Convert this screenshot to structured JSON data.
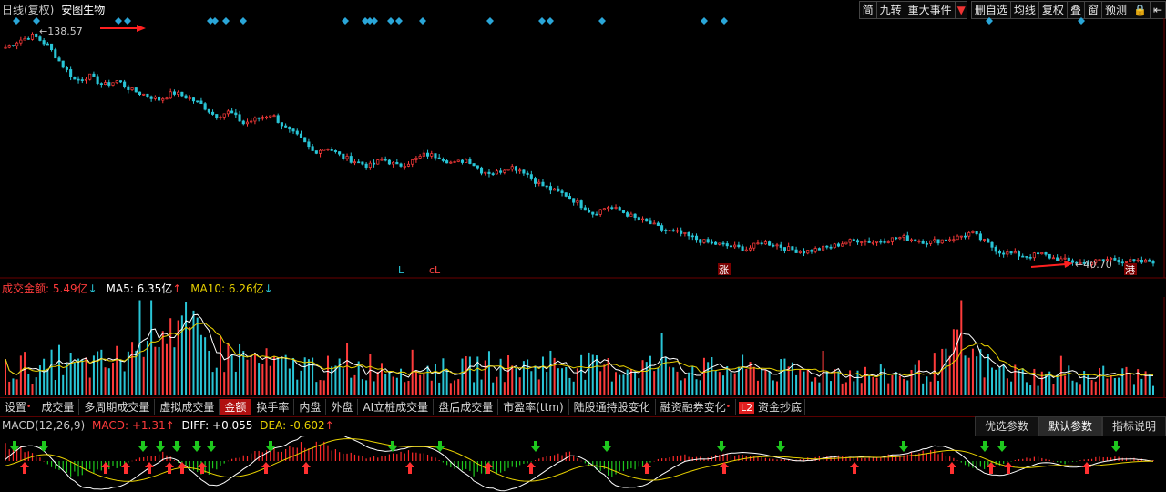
{
  "header": {
    "mode": "日线(复权)",
    "stock_name": "安图生物",
    "toolbar": [
      "简",
      "九转",
      "重大事件",
      "▼",
      "删自选",
      "均线",
      "复权",
      "叠",
      "窗",
      "预测",
      "🔒",
      "⇤"
    ]
  },
  "price_panel": {
    "high_label": "138.57",
    "low_label": "40.70",
    "markers": [
      "L",
      "cL",
      "涨",
      "港"
    ]
  },
  "volume_panel": {
    "label": "成交金额:",
    "value": "5.49亿",
    "ma5_label": "MA5:",
    "ma5_value": "6.35亿",
    "ma10_label": "MA10:",
    "ma10_value": "6.26亿",
    "arrow_down": "↓",
    "arrow_up": "↑"
  },
  "tabs": [
    {
      "label": "设置",
      "dot": true
    },
    {
      "label": "成交量"
    },
    {
      "label": "多周期成交量"
    },
    {
      "label": "虚拟成交量"
    },
    {
      "label": "金额",
      "active": true
    },
    {
      "label": "换手率"
    },
    {
      "label": "内盘"
    },
    {
      "label": "外盘"
    },
    {
      "label": "AI立桩成交量"
    },
    {
      "label": "盘后成交量"
    },
    {
      "label": "市盈率(ttm)"
    },
    {
      "label": "陆股通持股变化"
    },
    {
      "label": "融资融券变化",
      "dot": true
    },
    {
      "label": "资金抄底",
      "tag": "L2"
    }
  ],
  "macd_panel": {
    "title": "MACD(12,26,9)",
    "macd_label": "MACD:",
    "macd_value": "+1.31",
    "diff_label": "DIFF:",
    "diff_value": "+0.055",
    "dea_label": "DEA:",
    "dea_value": "-0.602",
    "arrow_up": "↑",
    "buttons": [
      "优选参数",
      "默认参数",
      "指标说明"
    ],
    "active_button": 1
  },
  "colors": {
    "up": "#ff3b3b",
    "down": "#29c5d6",
    "ma5": "#ffffff",
    "ma10": "#e8d100",
    "macd_up": "#ff2a2a",
    "macd_down": "#1ec81e",
    "diamond": "#2aa6d8",
    "arrow_hl": "#ff2020",
    "grid": "#6a0000"
  },
  "chart_data": {
    "type": "candlestick",
    "price_high": 138.57,
    "price_low": 40.7,
    "close_path": [
      132,
      135,
      137,
      133,
      125,
      118,
      120,
      116,
      118,
      114,
      112,
      110,
      113,
      111,
      108,
      103,
      105,
      100,
      102,
      104,
      98,
      94,
      88,
      90,
      86,
      84,
      82,
      85,
      82,
      84,
      87,
      86,
      83,
      85,
      80,
      79,
      82,
      80,
      75,
      72,
      70,
      66,
      62,
      65,
      63,
      60,
      58,
      55,
      54,
      52,
      50,
      49,
      48,
      47,
      50,
      49,
      47,
      46,
      47,
      48,
      50,
      51,
      50,
      51,
      52,
      51,
      50,
      51,
      52,
      54,
      50,
      46,
      45,
      44,
      45,
      43,
      42,
      41,
      42,
      43,
      42,
      41.5,
      42
    ],
    "volume_profile": [
      0.25,
      0.3,
      0.22,
      0.35,
      0.28,
      0.3,
      0.32,
      0.4,
      0.9,
      0.8,
      0.65,
      0.5,
      0.42,
      0.4,
      0.35,
      0.3,
      0.28,
      0.3,
      0.26,
      0.25,
      0.28,
      0.3,
      0.28,
      0.3,
      0.26,
      0.24,
      0.25,
      0.3,
      0.28,
      0.27,
      0.3,
      0.33,
      0.3,
      0.28,
      0.26,
      0.28,
      0.3,
      0.29,
      0.28,
      0.27,
      0.25,
      0.27,
      0.26,
      0.25,
      0.24,
      0.23,
      0.22,
      0.24,
      0.22,
      0.2,
      0.2,
      0.21,
      0.25,
      0.3,
      0.5,
      0.35,
      0.25,
      0.22,
      0.2,
      0.18,
      0.2,
      0.22,
      0.2,
      0.21,
      0.19,
      0.2
    ],
    "macd_profile": [
      1.5,
      1.2,
      -0.5,
      -1.4,
      -1.0,
      -0.6,
      0.4,
      0.9,
      -0.7,
      -1.3,
      0.2,
      0.8,
      1.2,
      1.6,
      1.8,
      1.0,
      0.3,
      0.6,
      1.1,
      0.4,
      -0.8,
      -1.5,
      -1.1,
      -0.4,
      0.5,
      0.9,
      -0.6,
      -1.4,
      -0.9,
      0.2,
      0.7,
      0.3,
      0.8,
      0.5,
      0.2,
      0.1,
      0.4,
      0.6,
      0.3,
      0.5,
      0.8,
      1.1,
      0.5,
      -0.9,
      -0.5,
      0.2,
      0.4,
      -0.3,
      0.2,
      0.5,
      0.3,
      0.1
    ]
  }
}
